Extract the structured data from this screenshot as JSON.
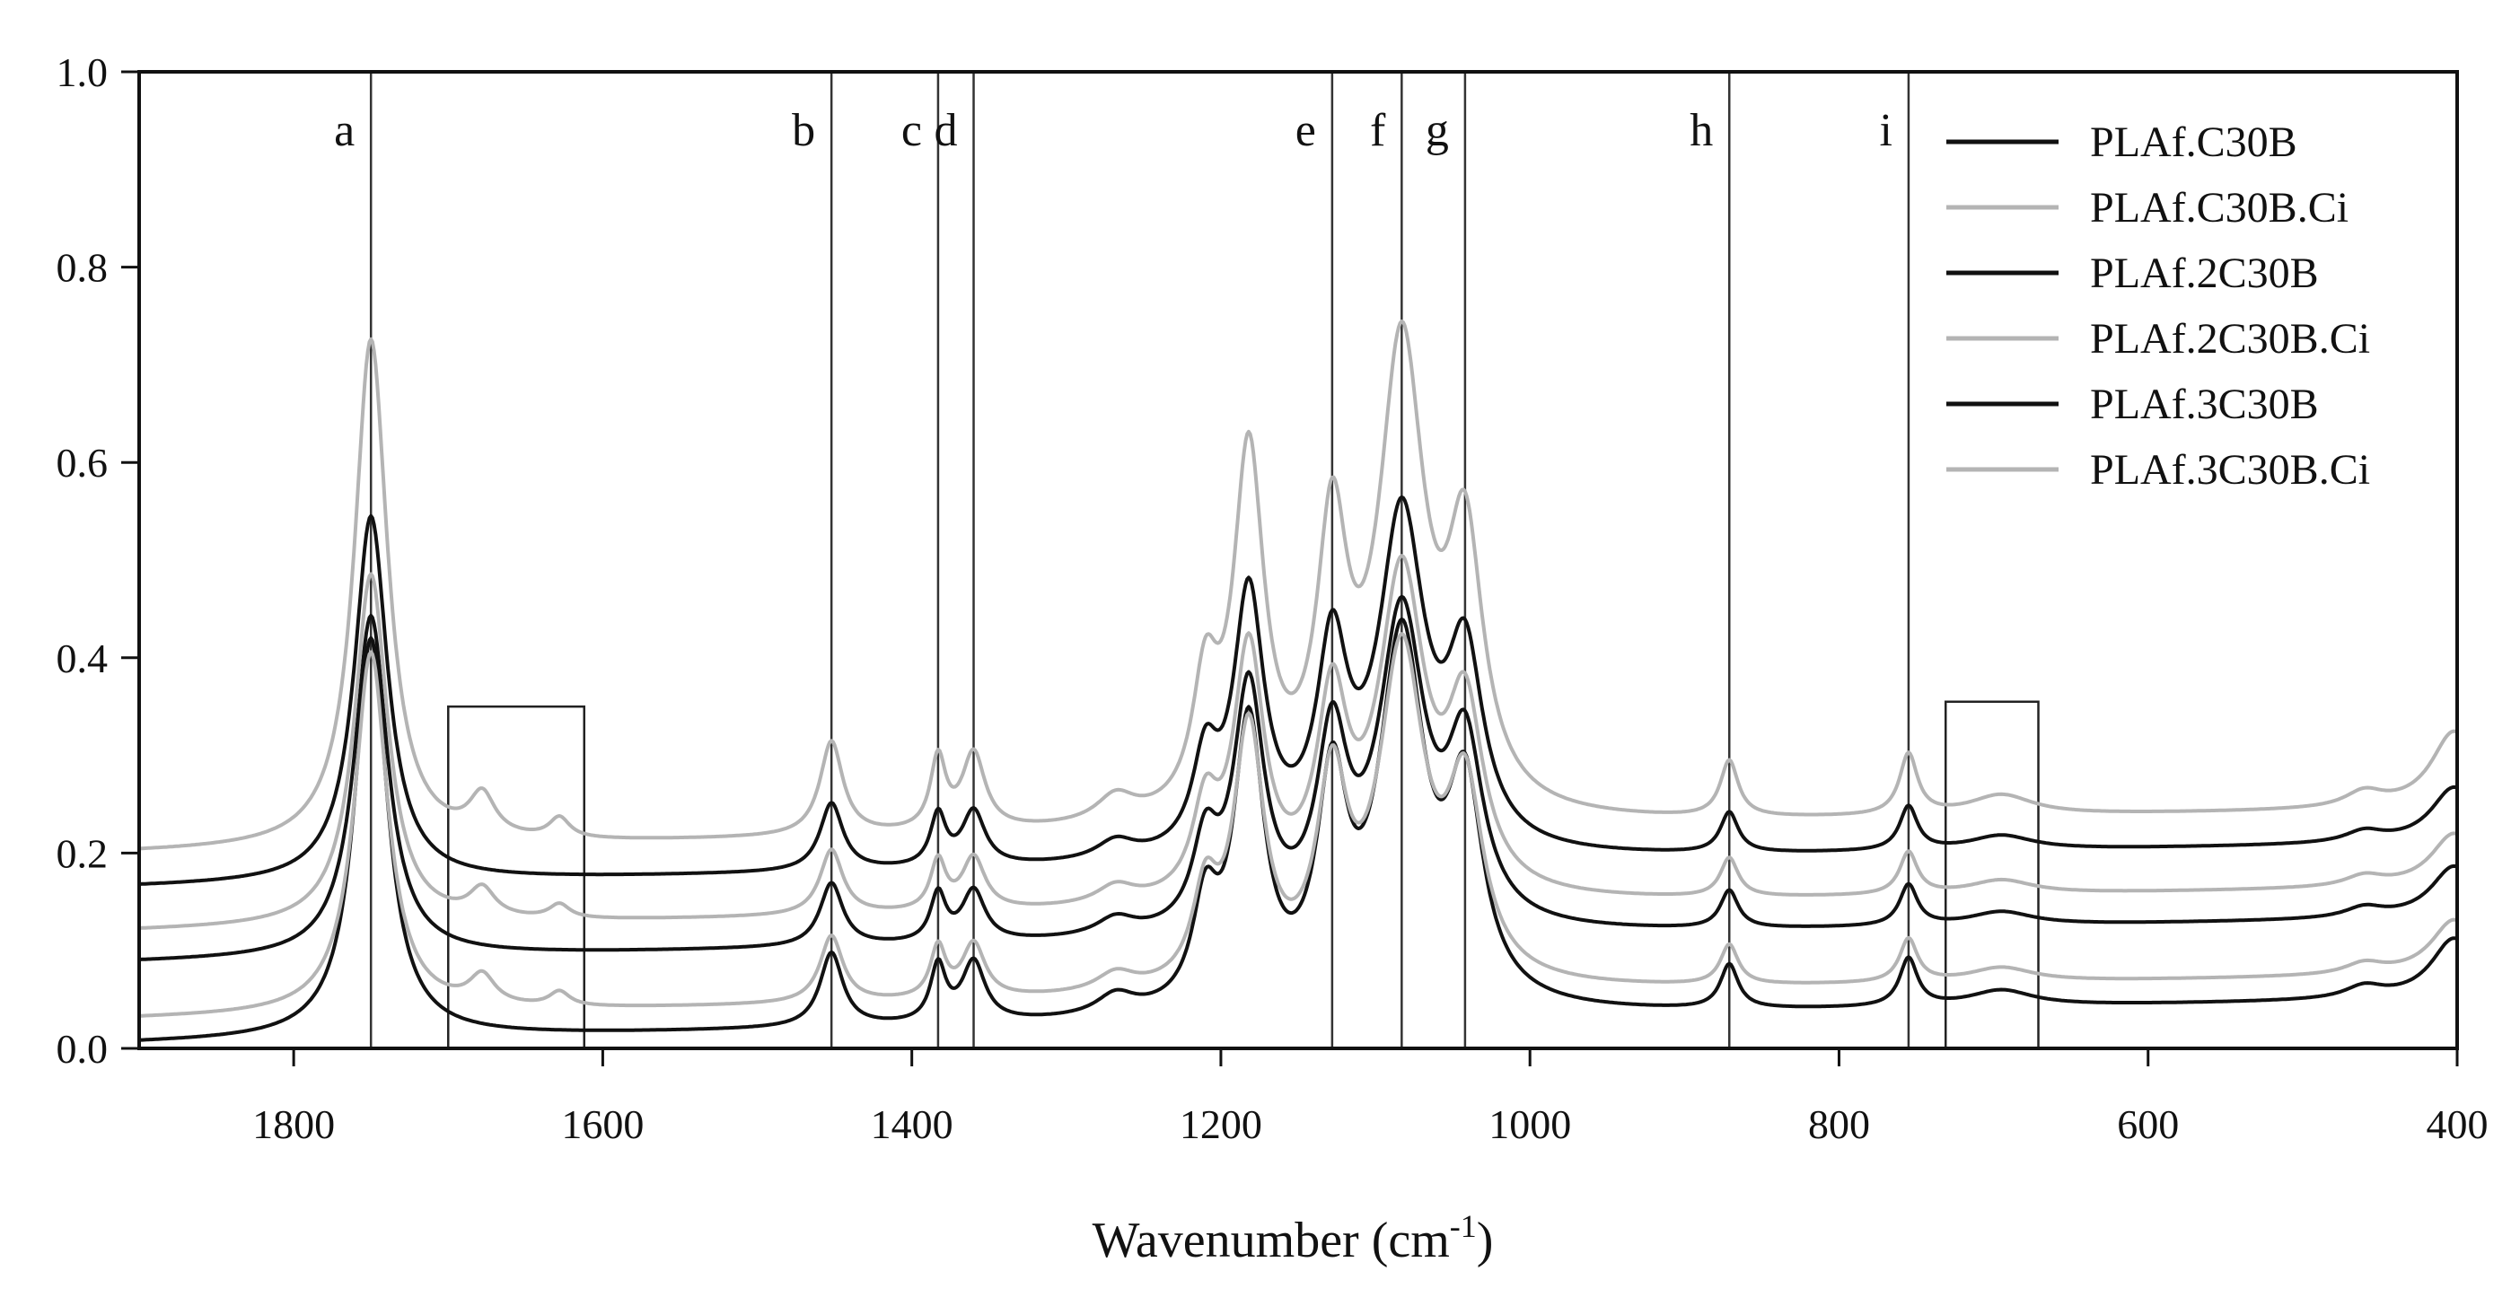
{
  "chart_data": {
    "type": "line",
    "title": "",
    "xlabel": "Wavenumber (cm",
    "xlabel_sup": "-1",
    "xlabel_suffix": ")",
    "ylabel": "",
    "xlim": [
      1900,
      400
    ],
    "ylim": [
      0.0,
      1.0
    ],
    "x_ticks": [
      1800,
      1600,
      1400,
      1200,
      1000,
      800,
      600,
      400
    ],
    "y_ticks": [
      "0.0",
      "0.2",
      "0.4",
      "0.6",
      "0.8",
      "1.0"
    ],
    "grid": false,
    "legend_position": "top-right",
    "reference_lines": [
      {
        "label": "a",
        "x": 1750
      },
      {
        "label": "b",
        "x": 1452
      },
      {
        "label": "c",
        "x": 1383
      },
      {
        "label": "d",
        "x": 1360
      },
      {
        "label": "e",
        "x": 1128
      },
      {
        "label": "f",
        "x": 1083
      },
      {
        "label": "g",
        "x": 1042
      },
      {
        "label": "h",
        "x": 871
      },
      {
        "label": "i",
        "x": 755
      }
    ],
    "highlight_boxes": [
      {
        "x_from": 1700,
        "x_to": 1612,
        "y_from": 0.0,
        "y_to": 0.35
      },
      {
        "x_from": 731,
        "x_to": 671,
        "y_from": 0.0,
        "y_to": 0.355
      }
    ],
    "series_shape": {
      "peaks": [
        {
          "x": 1750,
          "height": 1.0,
          "width": 13
        },
        {
          "x": 1452,
          "height": 0.185,
          "width": 9
        },
        {
          "x": 1383,
          "height": 0.14,
          "width": 6
        },
        {
          "x": 1360,
          "height": 0.15,
          "width": 9
        },
        {
          "x": 1268,
          "height": 0.05,
          "width": 15
        },
        {
          "x": 1210,
          "height": 0.24,
          "width": 10
        },
        {
          "x": 1182,
          "height": 0.7,
          "width": 12
        },
        {
          "x": 1128,
          "height": 0.52,
          "width": 12
        },
        {
          "x": 1083,
          "height": 0.9,
          "width": 18
        },
        {
          "x": 1042,
          "height": 0.5,
          "width": 14
        },
        {
          "x": 871,
          "height": 0.11,
          "width": 7
        },
        {
          "x": 755,
          "height": 0.12,
          "width": 7
        },
        {
          "x": 695,
          "height": 0.04,
          "width": 25
        },
        {
          "x": 460,
          "height": 0.03,
          "width": 15
        },
        {
          "x": 402,
          "height": 0.15,
          "width": 18
        }
      ],
      "filler_peaks": [
        {
          "x": 1678,
          "height": 0.08,
          "width": 10
        },
        {
          "x": 1628,
          "height": 0.04,
          "width": 8
        }
      ],
      "baseline_slope": 0.045
    },
    "series": [
      {
        "name": "PLAf.C30B",
        "color": "#111111",
        "baseline": 0.165,
        "scale": 0.375,
        "filler": false
      },
      {
        "name": "PLAf.C30B.Ci",
        "color": "#b4b4b4",
        "baseline": 0.2,
        "scale": 0.52,
        "filler": true
      },
      {
        "name": "PLAf.2C30B",
        "color": "#111111",
        "baseline": 0.088,
        "scale": 0.35,
        "filler": false
      },
      {
        "name": "PLAf.2C30B.Ci",
        "color": "#b4b4b4",
        "baseline": 0.12,
        "scale": 0.36,
        "filler": true
      },
      {
        "name": "PLAf.3C30B",
        "color": "#111111",
        "baseline": 0.005,
        "scale": 0.41,
        "filler": false
      },
      {
        "name": "PLAf.3C30B.Ci",
        "color": "#b4b4b4",
        "baseline": 0.03,
        "scale": 0.37,
        "filler": true
      }
    ]
  }
}
